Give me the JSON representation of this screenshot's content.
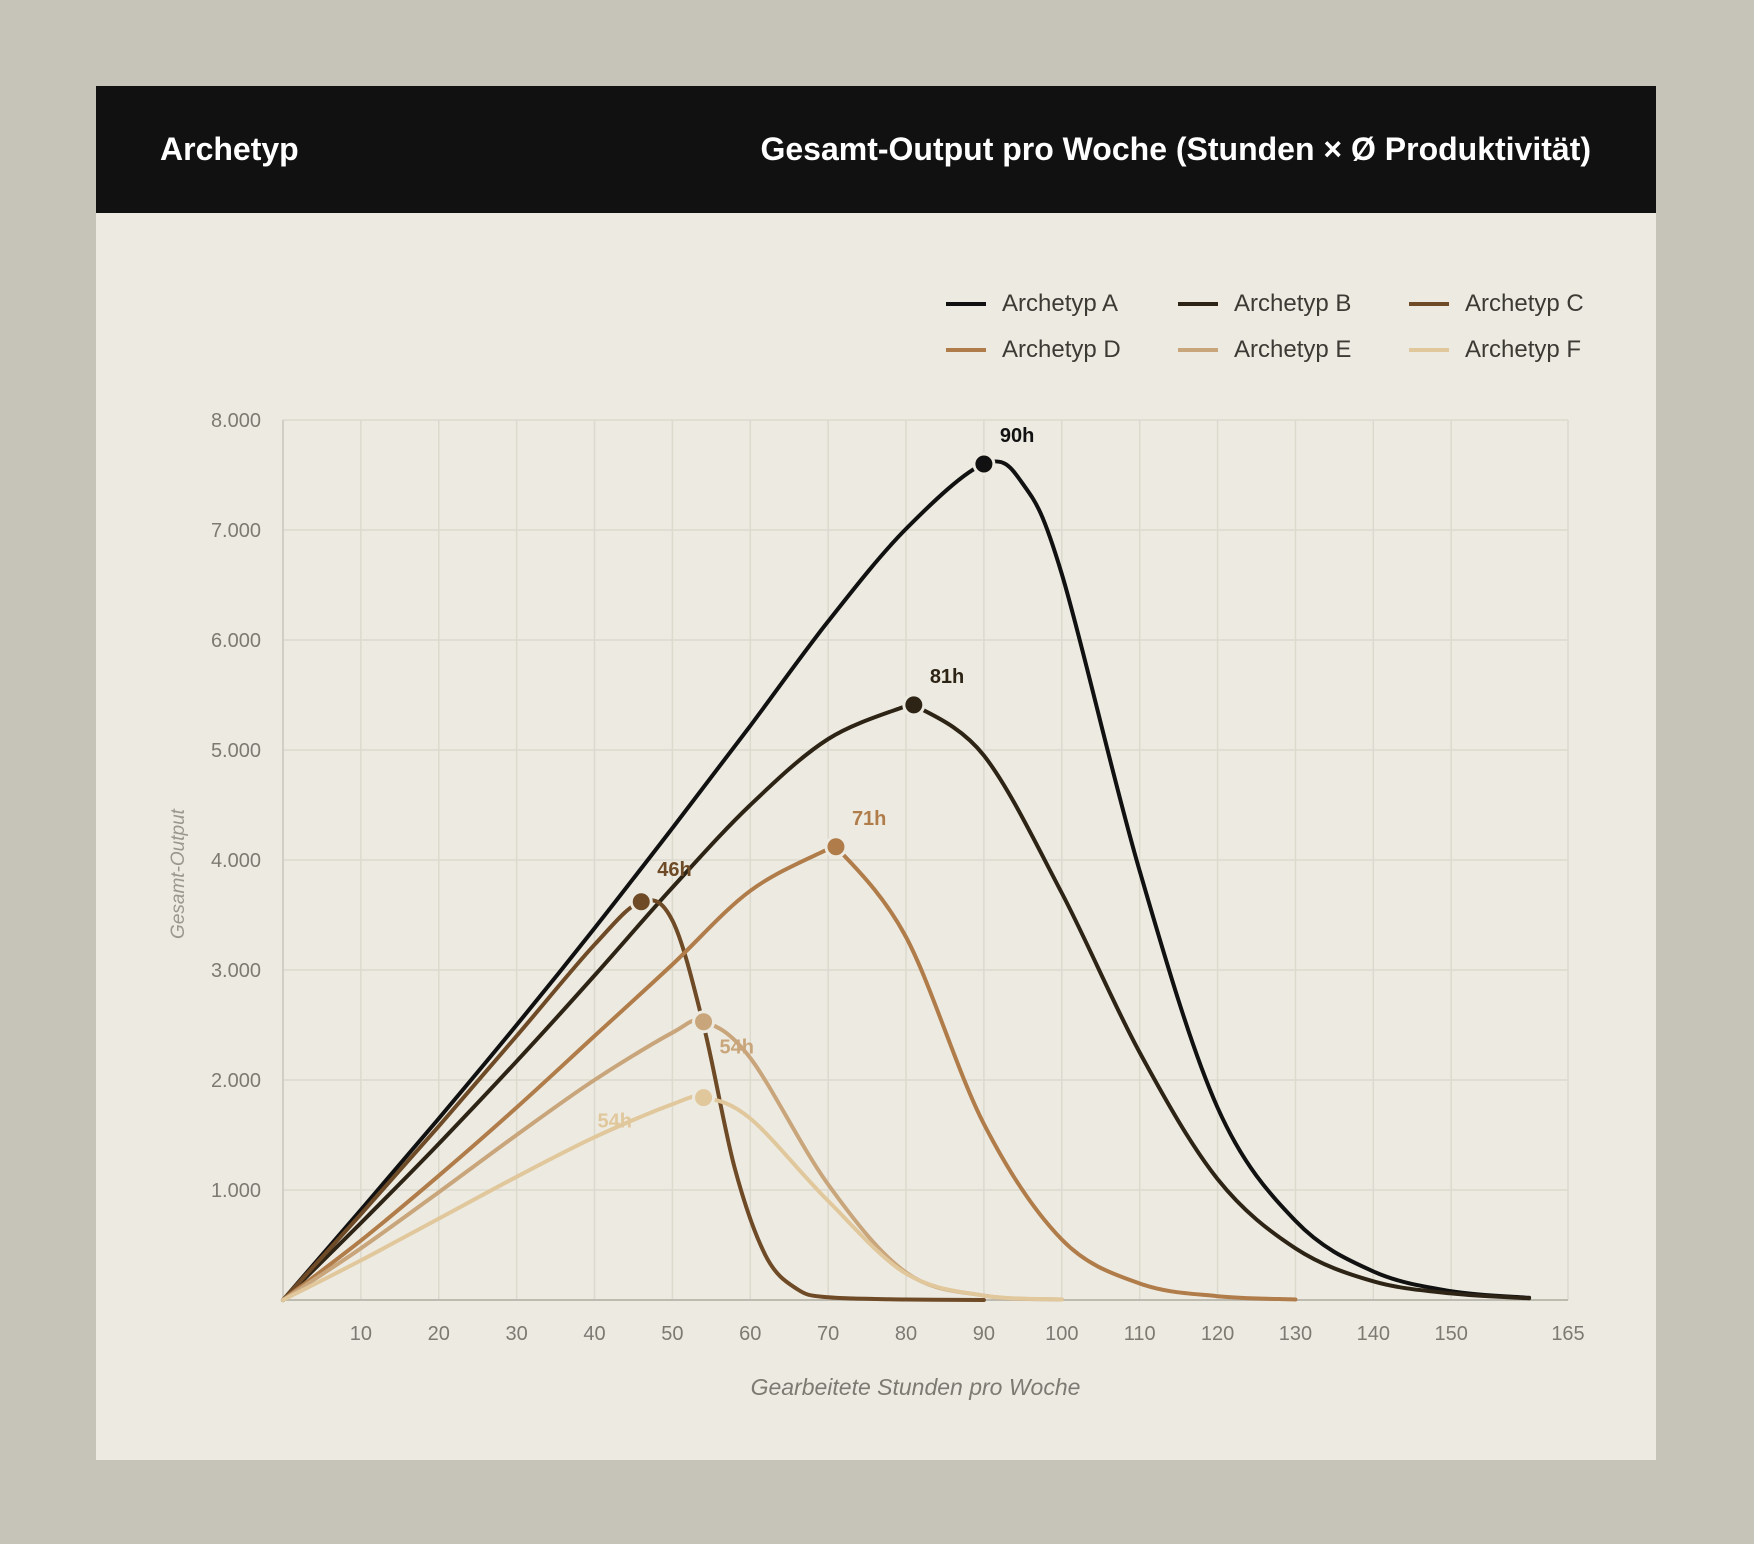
{
  "header": {
    "left": "Archetyp",
    "right": "Gesamt-Output pro Woche (Stunden × Ø Produktivität)"
  },
  "chart_data": {
    "type": "line",
    "title": "",
    "xlabel": "Gearbeitete Stunden pro Woche",
    "ylabel": "Gesamt-Output",
    "xlim": [
      0,
      165
    ],
    "ylim": [
      0,
      8000
    ],
    "x_ticks": [
      10,
      20,
      30,
      40,
      50,
      60,
      70,
      80,
      90,
      100,
      110,
      120,
      130,
      140,
      150,
      165
    ],
    "x_tick_labels": [
      "10",
      "20",
      "30",
      "40",
      "50",
      "60",
      "70",
      "80",
      "90",
      "100",
      "110",
      "120",
      "130",
      "140",
      "150",
      "165"
    ],
    "y_ticks": [
      1000,
      2000,
      3000,
      4000,
      5000,
      6000,
      7000,
      8000
    ],
    "y_tick_labels": [
      "1.000",
      "2.000",
      "3.000",
      "4.000",
      "5.000",
      "6.000",
      "7.000",
      "8.000"
    ],
    "grid": true,
    "legend_position": "top-right",
    "series": [
      {
        "name": "Archetyp A",
        "color": "#111111",
        "x": [
          0,
          10,
          20,
          30,
          40,
          50,
          60,
          70,
          80,
          90,
          95,
          100,
          110,
          120,
          130,
          140,
          150,
          160
        ],
        "y": [
          0,
          820,
          1650,
          2500,
          3380,
          4290,
          5220,
          6170,
          7010,
          7600,
          7420,
          6600,
          3900,
          1750,
          720,
          260,
          80,
          20
        ],
        "peak": {
          "x": 90,
          "y": 7600,
          "label": "90h"
        }
      },
      {
        "name": "Archetyp B",
        "color": "#2e2416",
        "x": [
          0,
          10,
          20,
          30,
          40,
          50,
          60,
          70,
          80,
          81,
          90,
          100,
          110,
          120,
          130,
          140,
          150,
          160
        ],
        "y": [
          0,
          700,
          1420,
          2170,
          2950,
          3750,
          4500,
          5100,
          5400,
          5410,
          4950,
          3700,
          2250,
          1100,
          470,
          170,
          60,
          15
        ],
        "peak": {
          "x": 81,
          "y": 5410,
          "label": "81h"
        }
      },
      {
        "name": "Archetyp C",
        "color": "#6e4a26",
        "x": [
          0,
          10,
          20,
          30,
          40,
          46,
          50,
          54,
          58,
          62,
          66,
          70,
          80,
          90
        ],
        "y": [
          0,
          780,
          1580,
          2400,
          3230,
          3620,
          3450,
          2500,
          1200,
          400,
          100,
          25,
          5,
          0
        ],
        "peak": {
          "x": 46,
          "y": 3620,
          "label": "46h"
        }
      },
      {
        "name": "Archetyp D",
        "color": "#b07c4a",
        "x": [
          0,
          10,
          20,
          30,
          40,
          50,
          60,
          70,
          71,
          80,
          90,
          100,
          110,
          120,
          130
        ],
        "y": [
          0,
          540,
          1130,
          1750,
          2400,
          3050,
          3720,
          4100,
          4120,
          3300,
          1600,
          550,
          150,
          35,
          5
        ],
        "peak": {
          "x": 71,
          "y": 4120,
          "label": "71h"
        }
      },
      {
        "name": "Archetyp E",
        "color": "#c9a57c",
        "x": [
          0,
          10,
          20,
          30,
          40,
          50,
          54,
          60,
          70,
          80,
          90,
          100
        ],
        "y": [
          0,
          470,
          980,
          1500,
          2000,
          2430,
          2530,
          2200,
          1050,
          250,
          40,
          5
        ],
        "peak": {
          "x": 54,
          "y": 2530,
          "label": "54h"
        }
      },
      {
        "name": "Archetyp F",
        "color": "#e1c79c",
        "x": [
          0,
          10,
          20,
          30,
          40,
          50,
          54,
          60,
          70,
          80,
          90,
          100
        ],
        "y": [
          0,
          360,
          740,
          1120,
          1480,
          1780,
          1840,
          1650,
          900,
          240,
          40,
          5
        ],
        "peak": {
          "x": 54,
          "y": 1840,
          "label": "54h"
        }
      }
    ]
  }
}
